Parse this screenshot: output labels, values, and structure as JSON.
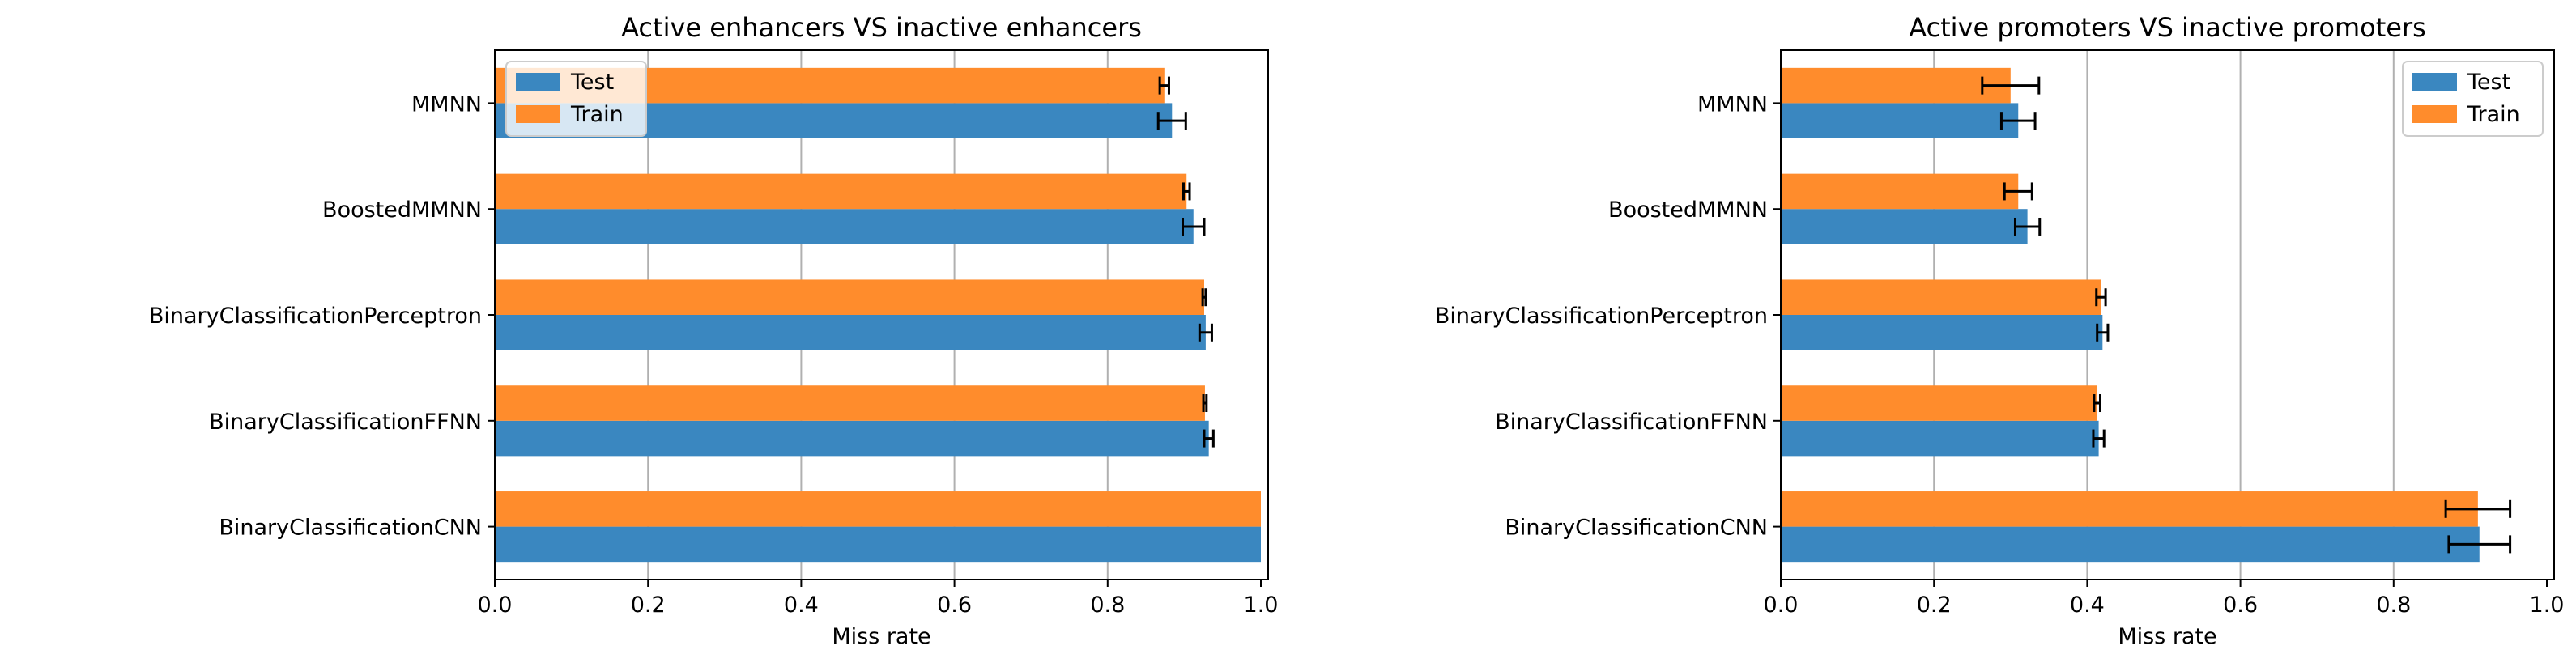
{
  "colors": {
    "test": "#3a87c0",
    "train": "#ff8c2c",
    "grid": "#b0b0b0",
    "axis": "#000000"
  },
  "chart_data": [
    {
      "type": "bar",
      "orientation": "horizontal",
      "title": "Active enhancers VS inactive enhancers",
      "xlabel": "Miss rate",
      "ylabel": "",
      "xlim": [
        0,
        1.0
      ],
      "x_ticks": [
        "0.0",
        "0.2",
        "0.4",
        "0.6",
        "0.8",
        "1.0"
      ],
      "grid": "vertical",
      "legend_position": "top-left",
      "categories": [
        "MMNN",
        "BoostedMMNN",
        "BinaryClassificationPerceptron",
        "BinaryClassificationFFNN",
        "BinaryClassificationCNN"
      ],
      "series": [
        {
          "name": "Test",
          "values": [
            0.884,
            0.912,
            0.928,
            0.932,
            1.0
          ],
          "errors": [
            0.018,
            0.014,
            0.008,
            0.006,
            0.0
          ]
        },
        {
          "name": "Train",
          "values": [
            0.874,
            0.903,
            0.926,
            0.927,
            1.0
          ],
          "errors": [
            0.006,
            0.004,
            0.002,
            0.002,
            0.0
          ]
        }
      ]
    },
    {
      "type": "bar",
      "orientation": "horizontal",
      "title": "Active promoters VS inactive promoters",
      "xlabel": "Miss rate",
      "ylabel": "",
      "xlim": [
        0,
        1.0
      ],
      "x_ticks": [
        "0.0",
        "0.2",
        "0.4",
        "0.6",
        "0.8",
        "1.0"
      ],
      "grid": "vertical",
      "legend_position": "top-right",
      "categories": [
        "MMNN",
        "BoostedMMNN",
        "BinaryClassificationPerceptron",
        "BinaryClassificationFFNN",
        "BinaryClassificationCNN"
      ],
      "series": [
        {
          "name": "Test",
          "values": [
            0.31,
            0.322,
            0.42,
            0.415,
            0.912
          ],
          "errors": [
            0.022,
            0.016,
            0.007,
            0.007,
            0.04
          ]
        },
        {
          "name": "Train",
          "values": [
            0.3,
            0.31,
            0.418,
            0.413,
            0.91
          ],
          "errors": [
            0.037,
            0.018,
            0.006,
            0.004,
            0.042
          ]
        }
      ]
    }
  ]
}
